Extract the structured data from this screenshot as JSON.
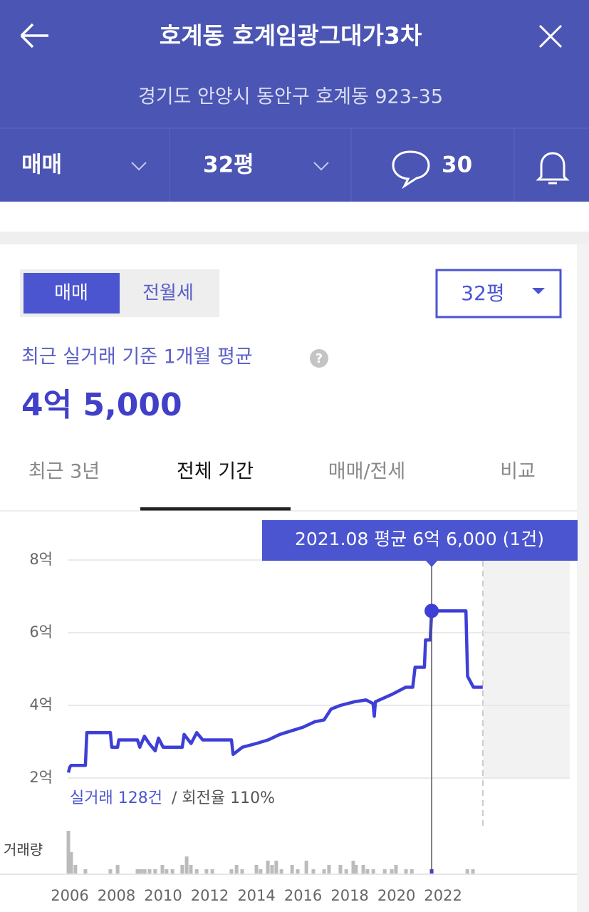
{
  "header": {
    "title": "호계동 호계임광그대가3차",
    "address": "경기도 안양시 동안구 호계동 923-35",
    "trade_type": "매매",
    "size": "32평",
    "comment_count": 30
  },
  "toggle": {
    "options": [
      "매매",
      "전월세"
    ],
    "selected": 0
  },
  "size_select": "32평",
  "summary": {
    "label": "최근 실거래 기준 1개월 평균",
    "price": "4억 5,000"
  },
  "tabs": {
    "items": [
      "최근 3년",
      "전체 기간",
      "매매/전세",
      "비교"
    ],
    "selected": 1
  },
  "stats": {
    "deals": "실거래 128건",
    "turnover": " / 회전율 110%"
  },
  "chart_data": {
    "type": "line",
    "color": "#3d3fd6",
    "x": [
      2005.94,
      2006.0,
      2006.06,
      2006.67,
      2006.73,
      2007.74,
      2007.8,
      2008.05,
      2008.1,
      2008.9,
      2009.0,
      2009.2,
      2009.4,
      2009.66,
      2009.8,
      2010.0,
      2010.82,
      2010.9,
      2011.2,
      2011.44,
      2011.7,
      2012.93,
      2013.0,
      2013.4,
      2014.0,
      2014.5,
      2015.0,
      2015.5,
      2016.0,
      2016.5,
      2016.9,
      2017.2,
      2017.6,
      2018.2,
      2018.7,
      2019.0,
      2019.05,
      2019.1,
      2019.8,
      2020.4,
      2020.7,
      2020.8,
      2021.2,
      2021.25,
      2021.45,
      2021.51,
      2022.98,
      2023.05,
      2023.3,
      2023.7
    ],
    "values": [
      2.15,
      2.3,
      2.35,
      2.35,
      3.25,
      3.25,
      2.85,
      2.85,
      3.05,
      3.05,
      2.85,
      3.15,
      2.95,
      2.75,
      3.1,
      2.85,
      2.85,
      3.2,
      2.95,
      3.25,
      3.05,
      3.05,
      2.65,
      2.85,
      2.95,
      3.05,
      3.2,
      3.3,
      3.4,
      3.55,
      3.6,
      3.9,
      4.0,
      4.1,
      4.15,
      4.05,
      3.7,
      4.1,
      4.3,
      4.5,
      4.5,
      5.05,
      5.05,
      5.8,
      5.8,
      6.6,
      6.6,
      4.8,
      4.5,
      4.5
    ],
    "xlim": [
      2005.9,
      2027.4
    ],
    "ylim": [
      2,
      8
    ],
    "xticks": [
      2006,
      2008,
      2010,
      2012,
      2014,
      2016,
      2018,
      2020,
      2022
    ],
    "yticks": [
      {
        "value": 2,
        "label": "2억"
      },
      {
        "value": 4,
        "label": "4억"
      },
      {
        "value": 6,
        "label": "6억"
      },
      {
        "value": 8,
        "label": "8억"
      }
    ],
    "grid": true,
    "highlight": {
      "x": 2021.51,
      "value": 6.6,
      "label": "2021.08 평균 6억 6,000 (1건)"
    },
    "volume": {
      "label": "거래량",
      "color": "#bbbbbb",
      "x": [
        2005.94,
        2006.06,
        2006.24,
        2006.67,
        2007.74,
        2008.05,
        2008.9,
        2009.05,
        2009.21,
        2009.42,
        2009.66,
        2009.97,
        2010.15,
        2010.4,
        2010.82,
        2011.01,
        2011.19,
        2011.44,
        2011.86,
        2012.11,
        2012.93,
        2013.15,
        2013.39,
        2014.0,
        2014.18,
        2014.49,
        2014.67,
        2014.85,
        2015.07,
        2015.53,
        2015.77,
        2016.14,
        2016.44,
        2016.9,
        2017.11,
        2017.6,
        2017.85,
        2018.15,
        2018.27,
        2018.58,
        2018.76,
        2019.01,
        2019.5,
        2019.8,
        2019.98,
        2020.41,
        2020.66,
        2021.51,
        2023.04,
        2023.28
      ],
      "values": [
        10,
        5,
        2,
        1,
        1,
        2,
        1,
        1,
        1,
        1,
        1,
        2,
        1,
        1,
        2,
        4,
        2,
        1,
        1,
        1,
        1,
        2,
        1,
        2,
        1,
        3,
        2,
        3,
        1,
        2,
        1,
        3,
        1,
        1,
        2,
        2,
        1,
        3,
        2,
        2,
        1,
        1,
        1,
        1,
        2,
        1,
        1,
        1,
        1,
        1
      ]
    }
  }
}
